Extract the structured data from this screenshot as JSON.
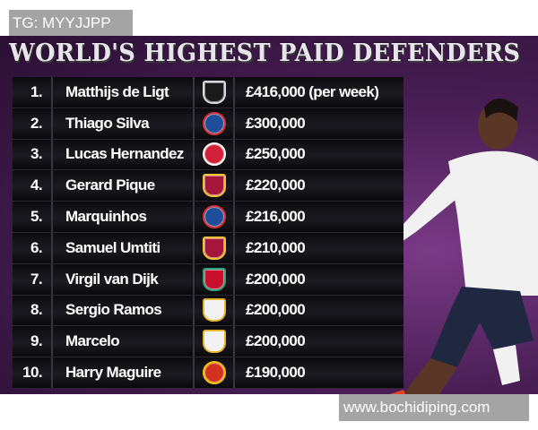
{
  "watermark_top": "TG: MYYJJPP",
  "watermark_bottom": "www.bochidiping.com",
  "title": "WORLD'S HIGHEST PAID DEFENDERS",
  "rows": [
    {
      "rank": "1.",
      "name": "Matthijs de Ligt",
      "salary": "£416,000 (per week)",
      "crest": "juventus-crest-icon",
      "color": "#d9d9d9",
      "bg": "#1a1a1a"
    },
    {
      "rank": "2.",
      "name": "Thiago Silva",
      "salary": "£300,000",
      "crest": "psg-crest-icon",
      "color": "#e03030",
      "bg": "#1f4d9a"
    },
    {
      "rank": "3.",
      "name": "Lucas Hernandez",
      "salary": "£250,000",
      "crest": "bayern-crest-icon",
      "color": "#ffffff",
      "bg": "#d3203a"
    },
    {
      "rank": "4.",
      "name": "Gerard Pique",
      "salary": "£220,000",
      "crest": "barcelona-crest-icon",
      "color": "#f2c230",
      "bg": "#a5173a"
    },
    {
      "rank": "5.",
      "name": "Marquinhos",
      "salary": "£216,000",
      "crest": "psg-crest-icon",
      "color": "#e03030",
      "bg": "#1f4d9a"
    },
    {
      "rank": "6.",
      "name": "Samuel Umtiti",
      "salary": "£210,000",
      "crest": "barcelona-crest-icon",
      "color": "#f2c230",
      "bg": "#a5173a"
    },
    {
      "rank": "7.",
      "name": "Virgil van Dijk",
      "salary": "£200,000",
      "crest": "liverpool-crest-icon",
      "color": "#2aa57a",
      "bg": "#c8102e"
    },
    {
      "rank": "8.",
      "name": "Sergio Ramos",
      "salary": "£200,000",
      "crest": "real-madrid-crest-icon",
      "color": "#e6b52c",
      "bg": "#f2f2f2"
    },
    {
      "rank": "9.",
      "name": "Marcelo",
      "salary": "£200,000",
      "crest": "real-madrid-crest-icon",
      "color": "#e6b52c",
      "bg": "#f2f2f2"
    },
    {
      "rank": "10.",
      "name": "Harry Maguire",
      "salary": "£190,000",
      "crest": "man-utd-crest-icon",
      "color": "#f3c400",
      "bg": "#d3321e"
    }
  ]
}
